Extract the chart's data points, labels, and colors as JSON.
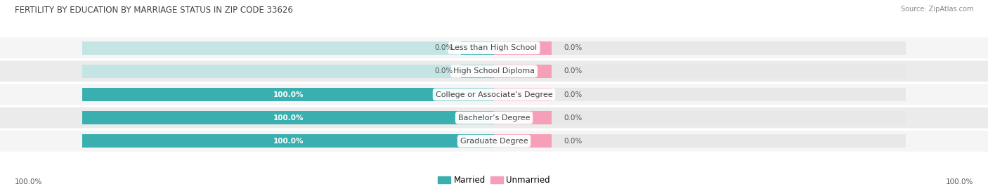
{
  "title": "FERTILITY BY EDUCATION BY MARRIAGE STATUS IN ZIP CODE 33626",
  "source": "Source: ZipAtlas.com",
  "categories": [
    "Less than High School",
    "High School Diploma",
    "College or Associate’s Degree",
    "Bachelor’s Degree",
    "Graduate Degree"
  ],
  "married_pct": [
    0.0,
    0.0,
    100.0,
    100.0,
    100.0
  ],
  "unmarried_pct": [
    0.0,
    0.0,
    0.0,
    0.0,
    0.0
  ],
  "married_color": "#3AAFAF",
  "unmarried_color": "#F5A0B8",
  "bar_bg_left": "#C5E5E5",
  "bar_bg_right": "#E8E8E8",
  "row_bg_even": "#F5F5F5",
  "row_bg_odd": "#EBEBEB",
  "label_color": "#444444",
  "title_color": "#444444",
  "source_color": "#888888",
  "pct_color": "#555555",
  "axis_label_left": "100.0%",
  "axis_label_right": "100.0%",
  "legend_married": "Married",
  "legend_unmarried": "Unmarried",
  "background_color": "#FFFFFF",
  "bar_height": 0.58,
  "min_married_display": 8,
  "min_unmarried_display": 14
}
